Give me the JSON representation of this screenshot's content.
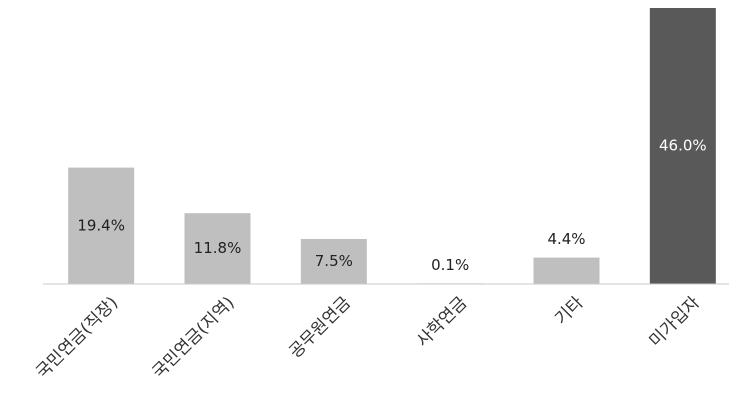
{
  "chart_data": {
    "type": "bar",
    "categories": [
      "국민연금(직장)",
      "국민연금(지역)",
      "공무원연금",
      "사학연금",
      "기타",
      "미가입자"
    ],
    "values": [
      19.4,
      11.8,
      7.5,
      0.1,
      4.4,
      46.0
    ],
    "value_labels": [
      "19.4%",
      "11.8%",
      "7.5%",
      "0.1%",
      "4.4%",
      "46.0%"
    ],
    "colors": [
      "#bfbfbf",
      "#bfbfbf",
      "#bfbfbf",
      "#bfbfbf",
      "#bfbfbf",
      "#595959"
    ],
    "ylim": [
      0,
      46
    ]
  }
}
